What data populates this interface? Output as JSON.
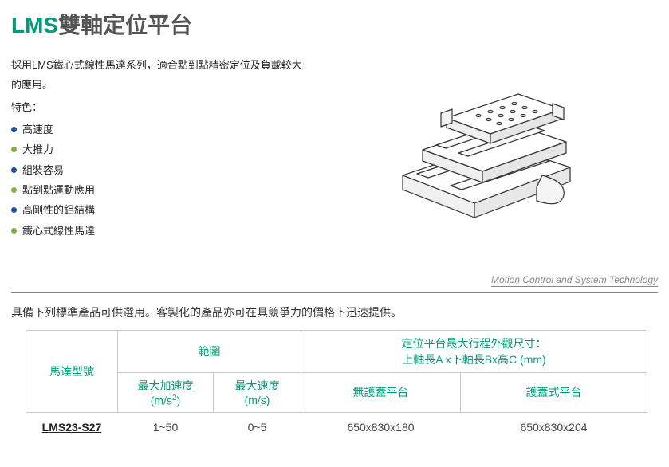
{
  "title": {
    "accent": "LMS",
    "rest": "雙軸定位平台"
  },
  "intro": "採用LMS鐵心式線性馬達系列，適合點到點精密定位及負載較大的應用。",
  "features_label": "特色：",
  "features": [
    {
      "text": "高速度",
      "bullet_color": "#1b4fa0"
    },
    {
      "text": "大推力",
      "bullet_color": "#7cb342"
    },
    {
      "text": "組裝容易",
      "bullet_color": "#1b4fa0"
    },
    {
      "text": "點到點運動應用",
      "bullet_color": "#7cb342"
    },
    {
      "text": "高剛性的鋁結構",
      "bullet_color": "#1b4fa0"
    },
    {
      "text": "鐵心式線性馬達",
      "bullet_color": "#7cb342"
    }
  ],
  "divider_label": "Motion Control and System Technology",
  "subdesc": "具備下列標準產品可供選用。客製化的產品亦可在具競爭力的價格下迅速提供。",
  "table": {
    "header_color": "#009c7a",
    "border_color": "#c8c8c8",
    "col_motor": "馬達型號",
    "col_range": "範圍",
    "col_dim": "定位平台最大行程外觀尺寸：",
    "col_dim_sub": "上軸長A x下軸長Bx高C (mm)",
    "col_accel_line1": "最大加速度",
    "col_accel_line2_pre": "(m/s",
    "col_accel_line2_sup": "2",
    "col_accel_line2_post": ")",
    "col_speed_line1": "最大速度",
    "col_speed_line2": "(m/s)",
    "col_open": "無護蓋平台",
    "col_cover": "護蓋式平台",
    "row": {
      "model": "LMS23-S27",
      "accel": "1~50",
      "speed": "0~5",
      "open": "650x830x180",
      "cover": "650x830x204"
    }
  },
  "colors": {
    "title_accent": "#009c7a",
    "title_rest": "#555555",
    "body_text": "#222222",
    "table_header_text": "#009c7a",
    "table_data_text": "#444444",
    "divider": "#888888"
  }
}
